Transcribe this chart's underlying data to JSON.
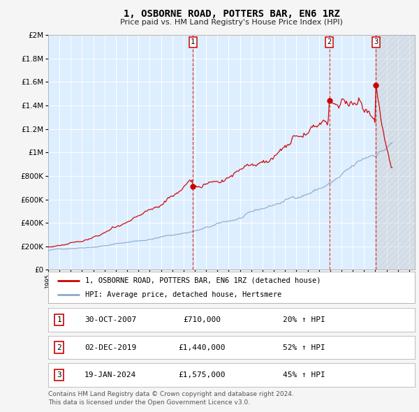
{
  "title": "1, OSBORNE ROAD, POTTERS BAR, EN6 1RZ",
  "subtitle": "Price paid vs. HM Land Registry's House Price Index (HPI)",
  "legend_line1": "1, OSBORNE ROAD, POTTERS BAR, EN6 1RZ (detached house)",
  "legend_line2": "HPI: Average price, detached house, Hertsmere",
  "footer_line1": "Contains HM Land Registry data © Crown copyright and database right 2024.",
  "footer_line2": "This data is licensed under the Open Government Licence v3.0.",
  "transactions": [
    {
      "num": 1,
      "date": "30-OCT-2007",
      "price": 710000,
      "hpi_pct": "20%",
      "hpi_dir": "↑"
    },
    {
      "num": 2,
      "date": "02-DEC-2019",
      "price": 1440000,
      "hpi_pct": "52%",
      "hpi_dir": "↑"
    },
    {
      "num": 3,
      "date": "19-JAN-2024",
      "price": 1575000,
      "hpi_pct": "45%",
      "hpi_dir": "↑"
    }
  ],
  "transaction_dates_decimal": [
    2007.833,
    2019.917,
    2024.05
  ],
  "ylim": [
    0,
    2000000
  ],
  "yticks": [
    0,
    200000,
    400000,
    600000,
    800000,
    1000000,
    1200000,
    1400000,
    1600000,
    1800000,
    2000000
  ],
  "xlim_start": 1995.0,
  "xlim_end": 2027.5,
  "xticks": [
    1995,
    1996,
    1997,
    1998,
    1999,
    2000,
    2001,
    2002,
    2003,
    2004,
    2005,
    2006,
    2007,
    2008,
    2009,
    2010,
    2011,
    2012,
    2013,
    2014,
    2015,
    2016,
    2017,
    2018,
    2019,
    2020,
    2021,
    2022,
    2023,
    2024,
    2025,
    2026,
    2027
  ],
  "bg_color": "#ddeeff",
  "grid_color": "#ffffff",
  "red_line_color": "#cc0000",
  "blue_line_color": "#88aacc",
  "hatch_start": 2024.0,
  "white_bg": "#ffffff",
  "light_gray": "#f0f0f0"
}
